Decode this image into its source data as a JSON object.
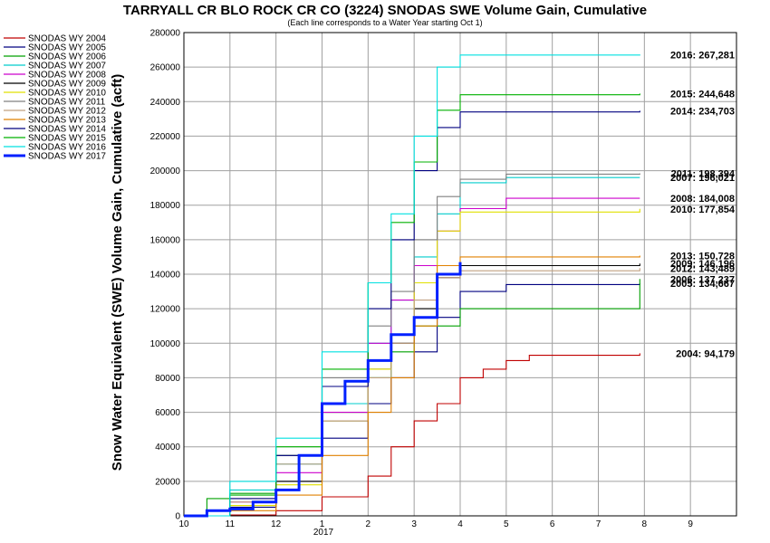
{
  "chart_data": {
    "type": "line",
    "title": "TARRYALL CR BLO ROCK CR CO (3224) SNODAS SWE Volume Gain, Cumulative",
    "subtitle": "(Each line corresponds to a Water Year starting Oct 1)",
    "ylabel": "Snow Water Equivalent (SWE) Volume Gain, Cumulative (acft)",
    "xlabel": "",
    "x_tick_labels": [
      "10",
      "11",
      "12",
      "1",
      "2",
      "3",
      "4",
      "5",
      "6",
      "7",
      "8",
      "9"
    ],
    "x_year_label": "2017",
    "xlim": [
      0,
      12
    ],
    "ylim": [
      0,
      280000
    ],
    "y_ticks": [
      0,
      20000,
      40000,
      60000,
      80000,
      100000,
      120000,
      140000,
      160000,
      180000,
      200000,
      220000,
      240000,
      260000,
      280000
    ],
    "grid": true,
    "legend_position": "top-left outside",
    "series": [
      {
        "name": "SNODAS WY 2004",
        "color": "#c00000",
        "end_label": "2004: 94,179",
        "points": [
          [
            0,
            0
          ],
          [
            1,
            500
          ],
          [
            2,
            3000
          ],
          [
            3,
            11000
          ],
          [
            4,
            23000
          ],
          [
            4.5,
            40000
          ],
          [
            5,
            55000
          ],
          [
            5.5,
            65000
          ],
          [
            6,
            80000
          ],
          [
            6.5,
            85000
          ],
          [
            7,
            90000
          ],
          [
            7.5,
            93000
          ],
          [
            9.9,
            94179
          ]
        ]
      },
      {
        "name": "SNODAS WY 2005",
        "color": "#000080",
        "end_label": "2005: 134,667",
        "points": [
          [
            0,
            0
          ],
          [
            1,
            5000
          ],
          [
            2,
            20000
          ],
          [
            3,
            45000
          ],
          [
            4,
            65000
          ],
          [
            4.5,
            80000
          ],
          [
            5,
            95000
          ],
          [
            5.5,
            115000
          ],
          [
            6,
            130000
          ],
          [
            7,
            134000
          ],
          [
            9.9,
            134667
          ]
        ]
      },
      {
        "name": "SNODAS WY 2006",
        "color": "#00a000",
        "end_label": "2006: 137,237",
        "points": [
          [
            0,
            0
          ],
          [
            0.5,
            10000
          ],
          [
            1,
            13000
          ],
          [
            2,
            35000
          ],
          [
            3,
            60000
          ],
          [
            4,
            80000
          ],
          [
            4.5,
            95000
          ],
          [
            5,
            110000
          ],
          [
            6,
            120000
          ],
          [
            9.7,
            120000
          ],
          [
            9.9,
            137237
          ]
        ]
      },
      {
        "name": "SNODAS WY 2007",
        "color": "#00cccc",
        "end_label": "2007: 196,021",
        "points": [
          [
            0,
            0
          ],
          [
            1,
            15000
          ],
          [
            2,
            30000
          ],
          [
            3,
            65000
          ],
          [
            4,
            100000
          ],
          [
            4.5,
            125000
          ],
          [
            5,
            150000
          ],
          [
            5.5,
            175000
          ],
          [
            6,
            193000
          ],
          [
            7,
            196000
          ],
          [
            9.9,
            196021
          ]
        ]
      },
      {
        "name": "SNODAS WY 2008",
        "color": "#cc00cc",
        "end_label": "2008: 184,008",
        "points": [
          [
            0,
            0
          ],
          [
            1,
            8000
          ],
          [
            2,
            25000
          ],
          [
            3,
            60000
          ],
          [
            4,
            100000
          ],
          [
            4.5,
            125000
          ],
          [
            5,
            145000
          ],
          [
            5.5,
            165000
          ],
          [
            6,
            178000
          ],
          [
            7,
            184000
          ],
          [
            9.9,
            184008
          ]
        ]
      },
      {
        "name": "SNODAS WY 2009",
        "color": "#000000",
        "end_label": "2009: 146,196",
        "points": [
          [
            0,
            0
          ],
          [
            1,
            6000
          ],
          [
            2,
            20000
          ],
          [
            3,
            55000
          ],
          [
            4,
            85000
          ],
          [
            4.5,
            100000
          ],
          [
            5,
            120000
          ],
          [
            5.5,
            138000
          ],
          [
            6,
            145000
          ],
          [
            9.9,
            146196
          ]
        ]
      },
      {
        "name": "SNODAS WY 2010",
        "color": "#e0e000",
        "end_label": "2010: 177,854",
        "points": [
          [
            0,
            0
          ],
          [
            1,
            6000
          ],
          [
            2,
            18000
          ],
          [
            3,
            55000
          ],
          [
            4,
            85000
          ],
          [
            4.5,
            105000
          ],
          [
            5,
            135000
          ],
          [
            5.5,
            165000
          ],
          [
            6,
            176000
          ],
          [
            9.9,
            177854
          ]
        ]
      },
      {
        "name": "SNODAS WY 2011",
        "color": "#808080",
        "end_label": "2011: 198,394",
        "points": [
          [
            0,
            0
          ],
          [
            1,
            10000
          ],
          [
            2,
            35000
          ],
          [
            3,
            80000
          ],
          [
            4,
            110000
          ],
          [
            4.5,
            130000
          ],
          [
            5,
            160000
          ],
          [
            5.5,
            185000
          ],
          [
            6,
            195000
          ],
          [
            7,
            198000
          ],
          [
            9.9,
            198394
          ]
        ]
      },
      {
        "name": "SNODAS WY 2012",
        "color": "#c0a080",
        "end_label": "2012: 143,489",
        "points": [
          [
            0,
            0
          ],
          [
            1,
            8000
          ],
          [
            2,
            30000
          ],
          [
            3,
            55000
          ],
          [
            4,
            80000
          ],
          [
            4.5,
            100000
          ],
          [
            5,
            125000
          ],
          [
            5.5,
            138000
          ],
          [
            6,
            142000
          ],
          [
            9.9,
            143489
          ]
        ]
      },
      {
        "name": "SNODAS WY 2013",
        "color": "#e08000",
        "end_label": "2013: 150,728",
        "points": [
          [
            0,
            0
          ],
          [
            1,
            3000
          ],
          [
            2,
            12000
          ],
          [
            3,
            35000
          ],
          [
            4,
            60000
          ],
          [
            4.5,
            80000
          ],
          [
            5,
            110000
          ],
          [
            5.5,
            145000
          ],
          [
            6,
            150000
          ],
          [
            9.9,
            150728
          ]
        ]
      },
      {
        "name": "SNODAS WY 2014",
        "color": "#000080",
        "end_label": "2014: 234,703",
        "points": [
          [
            0,
            0
          ],
          [
            1,
            10000
          ],
          [
            2,
            35000
          ],
          [
            3,
            75000
          ],
          [
            4,
            120000
          ],
          [
            4.5,
            160000
          ],
          [
            5,
            200000
          ],
          [
            5.5,
            225000
          ],
          [
            6,
            234000
          ],
          [
            9.9,
            234703
          ]
        ]
      },
      {
        "name": "SNODAS WY 2015",
        "color": "#00b000",
        "end_label": "2015: 244,648",
        "points": [
          [
            0,
            0
          ],
          [
            1,
            12000
          ],
          [
            2,
            40000
          ],
          [
            3,
            85000
          ],
          [
            4,
            135000
          ],
          [
            4.5,
            170000
          ],
          [
            5,
            205000
          ],
          [
            5.5,
            235000
          ],
          [
            6,
            244000
          ],
          [
            9.9,
            244648
          ]
        ]
      },
      {
        "name": "SNODAS WY 2016",
        "color": "#00e0e0",
        "end_label": "2016: 267,281",
        "points": [
          [
            0,
            0
          ],
          [
            1,
            20000
          ],
          [
            2,
            45000
          ],
          [
            3,
            95000
          ],
          [
            4,
            135000
          ],
          [
            4.5,
            175000
          ],
          [
            5,
            220000
          ],
          [
            5.5,
            260000
          ],
          [
            6,
            267000
          ],
          [
            9.9,
            267281
          ]
        ]
      },
      {
        "name": "SNODAS WY 2017",
        "color": "#0020ff",
        "end_label": "",
        "points": [
          [
            0,
            0
          ],
          [
            0.5,
            3000
          ],
          [
            1,
            4000
          ],
          [
            1.5,
            8000
          ],
          [
            2,
            15000
          ],
          [
            2.5,
            35000
          ],
          [
            3,
            65000
          ],
          [
            3.5,
            78000
          ],
          [
            4,
            90000
          ],
          [
            4.5,
            105000
          ],
          [
            5,
            115000
          ],
          [
            5.5,
            140000
          ],
          [
            6,
            147000
          ]
        ]
      }
    ]
  }
}
